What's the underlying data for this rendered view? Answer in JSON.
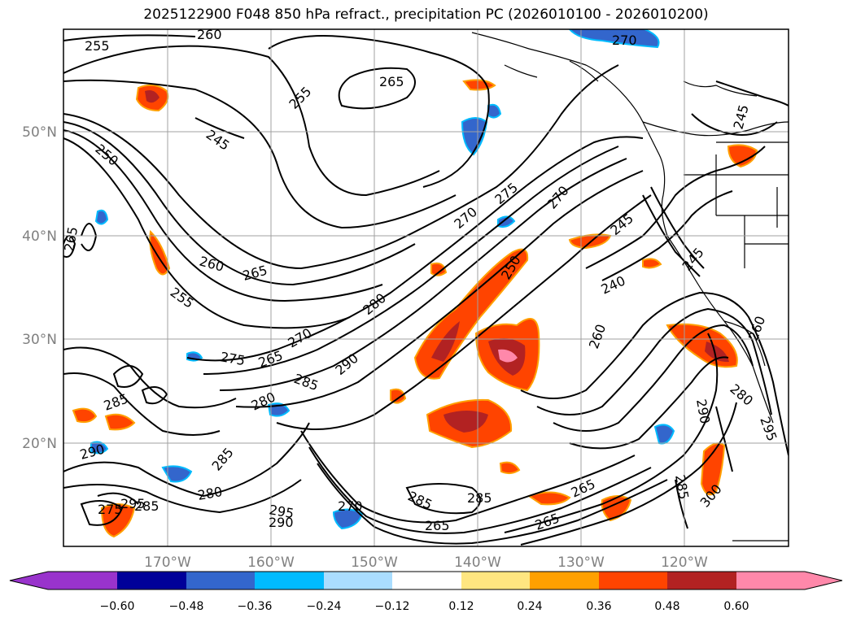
{
  "title": "2025122900 F048 850 hPa refract., precipitation PC (2026010100 - 2026010200)",
  "map": {
    "lat_ticks": [
      "50°N",
      "40°N",
      "30°N",
      "20°N"
    ],
    "lon_ticks": [
      "170°W",
      "160°W",
      "150°W",
      "140°W",
      "130°W",
      "120°W"
    ],
    "contour_labels": [
      "260",
      "255",
      "245",
      "250",
      "255",
      "265",
      "270",
      "265",
      "260",
      "255",
      "265",
      "275",
      "270",
      "280",
      "270",
      "265",
      "275",
      "285",
      "290",
      "280",
      "285",
      "290",
      "285",
      "280",
      "285",
      "275",
      "285",
      "265",
      "270",
      "265",
      "250",
      "245",
      "240",
      "260",
      "245",
      "290",
      "280",
      "295",
      "285",
      "300",
      "295",
      "290",
      "295",
      "285",
      "265",
      "270",
      "260",
      "245"
    ],
    "grid": true,
    "colors": {
      "land_line": "#000000",
      "contour": "#000000",
      "grid": "#a0a0a0"
    }
  },
  "colorbar": {
    "ticks": [
      "−0.60",
      "−0.48",
      "−0.36",
      "−0.24",
      "−0.12",
      "0.12",
      "0.24",
      "0.36",
      "0.48",
      "0.60"
    ],
    "colors": [
      "#9933cc",
      "#000099",
      "#3366cc",
      "#00bbff",
      "#aaddff",
      "#ffffff",
      "#ffe680",
      "#ffa000",
      "#ff4400",
      "#b22222",
      "#ff88aa"
    ]
  }
}
